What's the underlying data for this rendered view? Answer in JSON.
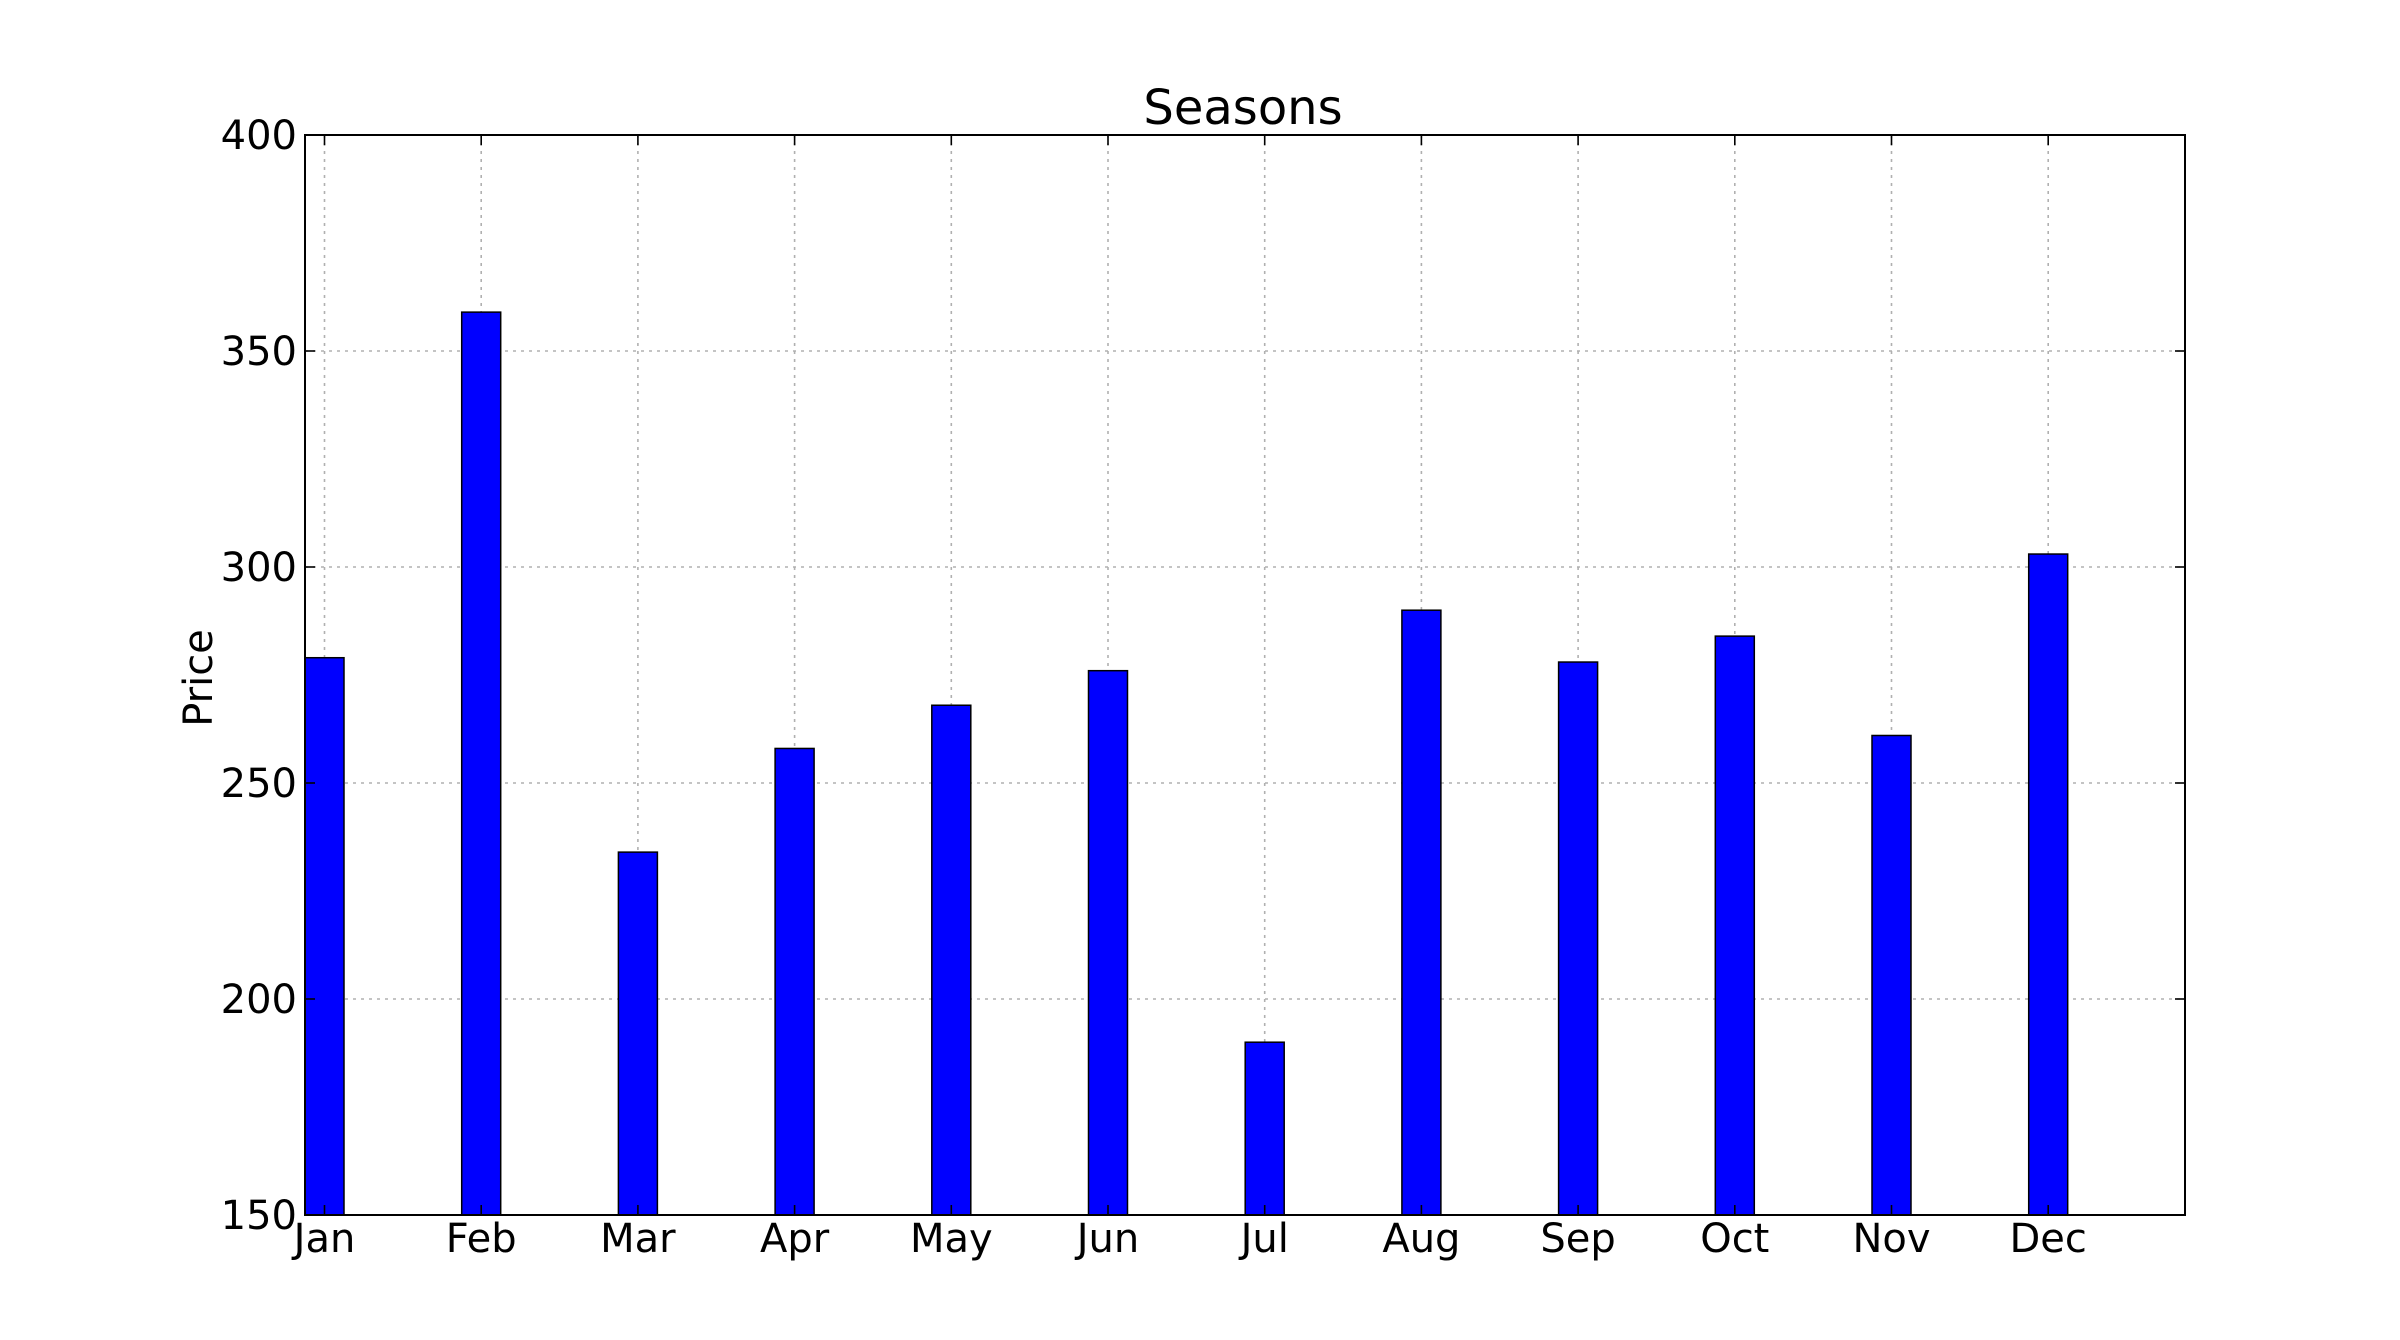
{
  "chart_data": {
    "type": "bar",
    "title": "Seasons",
    "xlabel": "",
    "ylabel": "Price",
    "categories": [
      "Jan",
      "Feb",
      "Mar",
      "Apr",
      "May",
      "Jun",
      "Jul",
      "Aug",
      "Sep",
      "Oct",
      "Nov",
      "Dec"
    ],
    "values": [
      279,
      359,
      234,
      258,
      268,
      276,
      190,
      290,
      278,
      284,
      261,
      303
    ],
    "ylim": [
      150,
      400
    ],
    "yticks": [
      150,
      200,
      250,
      300,
      350,
      400
    ],
    "grid": true,
    "bar_color": "#0000ff"
  }
}
